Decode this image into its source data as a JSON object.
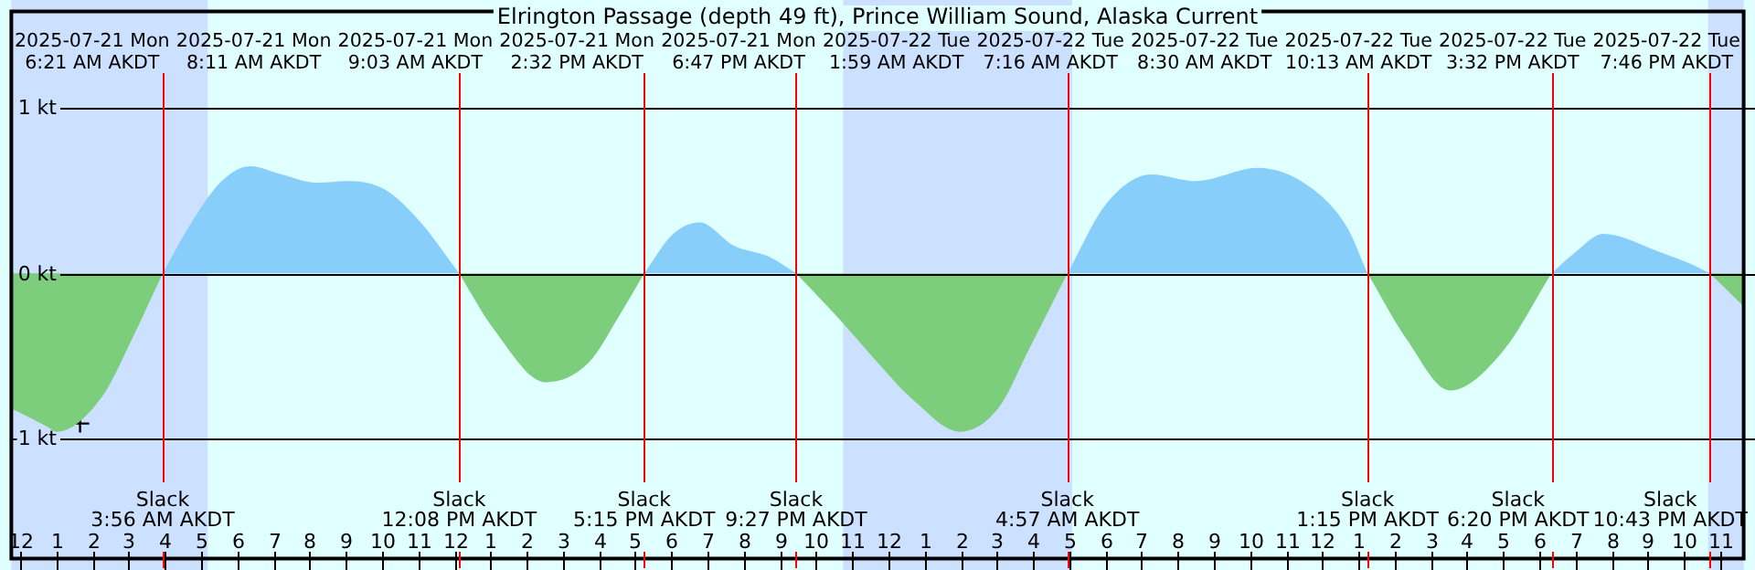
{
  "chart_data": {
    "type": "area",
    "title": "Elrington Passage (depth 49 ft), Prince William Sound, Alaska Current",
    "x": [
      "2025-07-20T23:45",
      "2025-07-21T00:45",
      "2025-07-21T01:00",
      "2025-07-21T02:15",
      "2025-07-21T03:05",
      "2025-07-21T03:56",
      "2025-07-21T04:44",
      "2025-07-21T05:34",
      "2025-07-21T06:21",
      "2025-07-21T07:14",
      "2025-07-21T08:11",
      "2025-07-21T09:03",
      "2025-07-21T10:04",
      "2025-07-21T11:04",
      "2025-07-21T12:08",
      "2025-07-21T13:04",
      "2025-07-21T14:32",
      "2025-07-21T15:43",
      "2025-07-21T16:33",
      "2025-07-21T17:15",
      "2025-07-21T18:03",
      "2025-07-21T18:47",
      "2025-07-21T19:43",
      "2025-07-21T20:43",
      "2025-07-21T21:27",
      "2025-07-21T22:42",
      "2025-07-21T23:42",
      "2025-07-22T00:42",
      "2025-07-22T01:59",
      "2025-07-22T03:02",
      "2025-07-22T03:52",
      "2025-07-22T04:57",
      "2025-07-22T06:01",
      "2025-07-22T07:16",
      "2025-07-22T08:30",
      "2025-07-22T10:13",
      "2025-07-22T11:41",
      "2025-07-22T12:41",
      "2025-07-22T13:15",
      "2025-07-22T14:20",
      "2025-07-22T15:32",
      "2025-07-22T17:00",
      "2025-07-22T18:20",
      "2025-07-22T19:00",
      "2025-07-22T19:46",
      "2025-07-22T21:20",
      "2025-07-22T22:10",
      "2025-07-22T22:43",
      "2025-07-22T23:39"
    ],
    "series": [
      {
        "color": "#87cefa",
        "values": [
          null,
          null,
          null,
          null,
          null,
          0,
          0.31,
          0.56,
          0.65,
          0.6,
          0.55,
          0.56,
          0.51,
          0.31,
          0,
          null,
          null,
          null,
          null,
          0,
          0.24,
          0.31,
          0.17,
          0.1,
          0,
          null,
          null,
          null,
          null,
          null,
          null,
          0,
          0.42,
          0.6,
          0.56,
          0.64,
          0.52,
          0.28,
          0,
          null,
          null,
          null,
          0,
          0.13,
          0.24,
          0.13,
          0.06,
          0,
          null
        ]
      },
      {
        "color": "#7ccd7c",
        "values": [
          -0.82,
          -0.93,
          -0.96,
          -0.75,
          -0.4,
          0,
          null,
          null,
          null,
          null,
          null,
          null,
          null,
          null,
          0,
          -0.33,
          -0.66,
          -0.54,
          -0.26,
          0,
          null,
          null,
          null,
          null,
          0,
          -0.29,
          -0.54,
          -0.77,
          -0.96,
          -0.82,
          -0.47,
          0,
          null,
          null,
          null,
          null,
          null,
          null,
          0,
          -0.4,
          -0.71,
          -0.47,
          0,
          null,
          null,
          null,
          null,
          0,
          -0.2
        ]
      },
      {
        "type": "scatter",
        "color": "#000000",
        "marker": "cross",
        "x": [
          "2025-07-21T01:39"
        ],
        "values": [
          -0.91
        ]
      }
    ],
    "xlim": [
      "2025-07-20T23:45",
      "2025-07-22T23:39"
    ],
    "ylim": [
      -1.73,
      1.59
    ],
    "xticks": [
      {
        "value": "2025-07-21T00:00",
        "label": "12"
      },
      {
        "value": "2025-07-21T01:00",
        "label": "1"
      },
      {
        "value": "2025-07-21T02:00",
        "label": "2"
      },
      {
        "value": "2025-07-21T03:00",
        "label": "3"
      },
      {
        "value": "2025-07-21T04:00",
        "label": "4"
      },
      {
        "value": "2025-07-21T05:00",
        "label": "5"
      },
      {
        "value": "2025-07-21T06:00",
        "label": "6"
      },
      {
        "value": "2025-07-21T07:00",
        "label": "7"
      },
      {
        "value": "2025-07-21T08:00",
        "label": "8"
      },
      {
        "value": "2025-07-21T09:00",
        "label": "9"
      },
      {
        "value": "2025-07-21T10:00",
        "label": "10"
      },
      {
        "value": "2025-07-21T11:00",
        "label": "11"
      },
      {
        "value": "2025-07-21T12:00",
        "label": "12"
      },
      {
        "value": "2025-07-21T13:00",
        "label": "1"
      },
      {
        "value": "2025-07-21T14:00",
        "label": "2"
      },
      {
        "value": "2025-07-21T15:00",
        "label": "3"
      },
      {
        "value": "2025-07-21T16:00",
        "label": "4"
      },
      {
        "value": "2025-07-21T17:00",
        "label": "5"
      },
      {
        "value": "2025-07-21T18:00",
        "label": "6"
      },
      {
        "value": "2025-07-21T19:00",
        "label": "7"
      },
      {
        "value": "2025-07-21T20:00",
        "label": "8"
      },
      {
        "value": "2025-07-21T21:00",
        "label": "9"
      },
      {
        "value": "2025-07-21T22:00",
        "label": "10"
      },
      {
        "value": "2025-07-21T23:00",
        "label": "11"
      },
      {
        "value": "2025-07-22T00:00",
        "label": "12"
      },
      {
        "value": "2025-07-22T01:00",
        "label": "1"
      },
      {
        "value": "2025-07-22T02:00",
        "label": "2"
      },
      {
        "value": "2025-07-22T03:00",
        "label": "3"
      },
      {
        "value": "2025-07-22T04:00",
        "label": "4"
      },
      {
        "value": "2025-07-22T05:00",
        "label": "5"
      },
      {
        "value": "2025-07-22T06:00",
        "label": "6"
      },
      {
        "value": "2025-07-22T07:00",
        "label": "7"
      },
      {
        "value": "2025-07-22T08:00",
        "label": "8"
      },
      {
        "value": "2025-07-22T09:00",
        "label": "9"
      },
      {
        "value": "2025-07-22T10:00",
        "label": "10"
      },
      {
        "value": "2025-07-22T11:00",
        "label": "11"
      },
      {
        "value": "2025-07-22T12:00",
        "label": "12"
      },
      {
        "value": "2025-07-22T13:00",
        "label": "1"
      },
      {
        "value": "2025-07-22T14:00",
        "label": "2"
      },
      {
        "value": "2025-07-22T15:00",
        "label": "3"
      },
      {
        "value": "2025-07-22T16:00",
        "label": "4"
      },
      {
        "value": "2025-07-22T17:00",
        "label": "5"
      },
      {
        "value": "2025-07-22T18:00",
        "label": "6"
      },
      {
        "value": "2025-07-22T19:00",
        "label": "7"
      },
      {
        "value": "2025-07-22T20:00",
        "label": "8"
      },
      {
        "value": "2025-07-22T21:00",
        "label": "9"
      },
      {
        "value": "2025-07-22T22:00",
        "label": "10"
      },
      {
        "value": "2025-07-22T23:00",
        "label": "11"
      }
    ],
    "yticks": [
      {
        "value": -1,
        "label": "-1 kt"
      },
      {
        "value": 0,
        "label": "0 kt"
      },
      {
        "value": 1,
        "label": "1 kt"
      }
    ],
    "grid": "y",
    "legend": false,
    "bands": [
      {
        "axis": "x",
        "from": "2025-07-20T23:45",
        "to": "2025-07-21T05:11",
        "color": "#cce0ff"
      },
      {
        "axis": "x",
        "from": "2025-07-21T22:45",
        "to": "2025-07-22T05:05",
        "color": "#cce0ff"
      },
      {
        "axis": "x",
        "from": "2025-07-22T22:40",
        "to": "2025-07-22T23:39",
        "color": "#cce0ff"
      }
    ],
    "ref_lines": [
      {
        "axis": "x",
        "value": "2025-07-21T03:56",
        "label": "Slack\n3:56 AM AKDT",
        "color": "#ff0000"
      },
      {
        "axis": "x",
        "value": "2025-07-21T12:08",
        "label": "Slack\n12:08 PM AKDT",
        "color": "#ff0000"
      },
      {
        "axis": "x",
        "value": "2025-07-21T17:15",
        "label": "Slack\n5:15 PM AKDT",
        "color": "#ff0000"
      },
      {
        "axis": "x",
        "value": "2025-07-21T21:27",
        "label": "Slack\n9:27 PM AKDT",
        "color": "#ff0000"
      },
      {
        "axis": "x",
        "value": "2025-07-22T04:57",
        "label": "Slack\n4:57 AM AKDT",
        "color": "#ff0000"
      },
      {
        "axis": "x",
        "value": "2025-07-22T13:15",
        "label": "Slack\n1:15 PM AKDT",
        "color": "#ff0000"
      },
      {
        "axis": "x",
        "value": "2025-07-22T18:20",
        "label": "Slack\n6:20 PM AKDT",
        "color": "#ff0000"
      },
      {
        "axis": "x",
        "value": "2025-07-22T22:43",
        "label": "Slack\n10:43 PM AKDT",
        "color": "#ff0000"
      }
    ],
    "annotations": [
      "2025-07-21 Mon\n6:21 AM AKDT",
      "2025-07-21 Mon\n8:11 AM AKDT",
      "2025-07-21 Mon\n9:03 AM AKDT",
      "2025-07-21 Mon\n2:32 PM AKDT",
      "2025-07-21 Mon\n6:47 PM AKDT",
      "2025-07-22 Tue\n1:59 AM AKDT",
      "2025-07-22 Tue\n7:16 AM AKDT",
      "2025-07-22 Tue\n8:30 AM AKDT",
      "2025-07-22 Tue\n10:13 AM AKDT",
      "2025-07-22 Tue\n3:32 PM AKDT",
      "2025-07-22 Tue\n7:46 PM AKDT"
    ]
  }
}
